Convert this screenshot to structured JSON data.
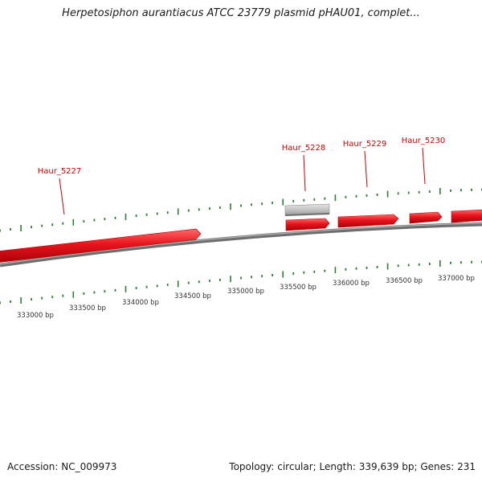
{
  "title": "Herpetosiphon aurantiacus ATCC 23779 plasmid pHAU01, complet...",
  "footer": {
    "accession": "Accession: NC_009973",
    "summary": "Topology: circular; Length: 339,639 bp; Genes: 231"
  },
  "colors": {
    "gene_forward": "#e8141c",
    "gene_pseudo": "#c0c0c0",
    "backbone": "#7a7a7a",
    "tick": "#2e7d32",
    "gene_label": "#cc0000",
    "position_label": "#333333"
  },
  "position_labels": [
    "333000 bp",
    "333500 bp",
    "334000 bp",
    "334500 bp",
    "335000 bp",
    "335500 bp",
    "336000 bp",
    "336500 bp",
    "337000 bp"
  ],
  "gene_labels": [
    "Haur_5227",
    "Haur_5228",
    "Haur_5229",
    "Haur_5230"
  ]
}
